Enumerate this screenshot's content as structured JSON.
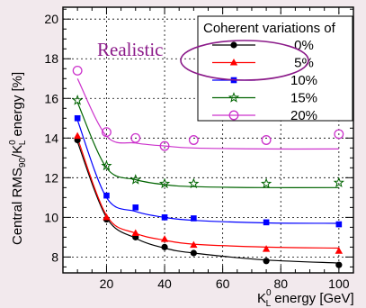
{
  "chart_data": {
    "type": "scatter",
    "xlabel_main": "K",
    "xlabel_sup": "0",
    "xlabel_sub": "L",
    "xlabel_rest": " energy [GeV]",
    "ylabel_a": "Central RMS",
    "ylabel_sub90": "90",
    "ylabel_b": "/K",
    "ylabel_sup0": "0",
    "ylabel_subL": "L",
    "ylabel_c": " energy [%]",
    "xlim": [
      5,
      105
    ],
    "ylim": [
      7.2,
      20.6
    ],
    "xticks": [
      20,
      40,
      60,
      80,
      100
    ],
    "yticks": [
      8,
      10,
      12,
      14,
      16,
      18,
      20
    ],
    "grid": true,
    "legend_title": "Coherent variations of",
    "legend_position": "top-right",
    "annotation": "Realistic",
    "annotation_color": "#8b1a89",
    "series": [
      {
        "name": "0%",
        "color": "#000000",
        "marker": "circle-filled",
        "x": [
          10,
          20,
          30,
          40,
          50,
          75,
          100
        ],
        "y": [
          13.9,
          9.9,
          9.0,
          8.5,
          8.2,
          7.8,
          7.6
        ],
        "fit": [
          13.8,
          10.0,
          8.95,
          8.45,
          8.2,
          7.85,
          7.7
        ]
      },
      {
        "name": "5%",
        "color": "#ff0000",
        "marker": "triangle-filled",
        "x": [
          10,
          20,
          30,
          40,
          50,
          75,
          100
        ],
        "y": [
          14.1,
          10.0,
          9.2,
          8.9,
          8.6,
          8.4,
          8.3
        ],
        "fit": [
          14.0,
          10.1,
          9.2,
          8.85,
          8.65,
          8.5,
          8.45
        ]
      },
      {
        "name": "10%",
        "color": "#0000ff",
        "marker": "square-filled",
        "x": [
          10,
          20,
          30,
          40,
          50,
          75,
          100
        ],
        "y": [
          15.0,
          11.1,
          10.5,
          10.0,
          9.95,
          9.75,
          9.65
        ],
        "fit": [
          14.9,
          11.0,
          10.3,
          10.0,
          9.85,
          9.72,
          9.7
        ]
      },
      {
        "name": "15%",
        "color": "#006400",
        "marker": "star-open",
        "x": [
          10,
          20,
          30,
          40,
          50,
          75,
          100
        ],
        "y": [
          15.9,
          12.6,
          11.9,
          11.7,
          11.7,
          11.7,
          11.75
        ],
        "fit": [
          15.8,
          12.5,
          11.9,
          11.65,
          11.55,
          11.5,
          11.5
        ]
      },
      {
        "name": "20%",
        "color": "#cc33cc",
        "marker": "circle-open",
        "x": [
          10,
          20,
          30,
          40,
          50,
          75,
          100
        ],
        "y": [
          17.4,
          14.3,
          14.0,
          13.6,
          13.9,
          13.9,
          14.2
        ],
        "fit": [
          17.0,
          14.1,
          13.75,
          13.6,
          13.5,
          13.45,
          13.45
        ]
      }
    ]
  }
}
